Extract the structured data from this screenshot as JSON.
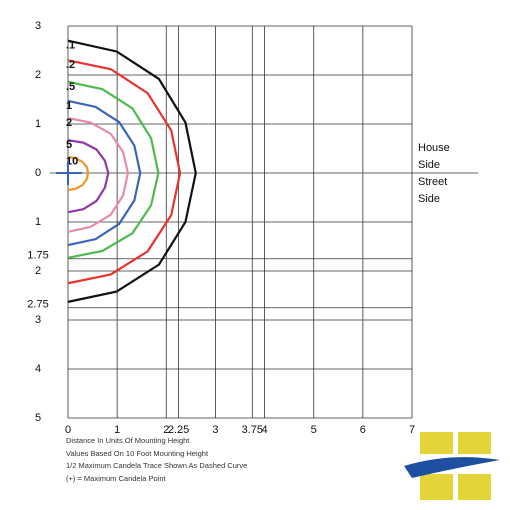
{
  "chart_data": {
    "type": "line",
    "xlim": [
      0,
      7
    ],
    "ylim": [
      -5,
      3
    ],
    "xticks": [
      0,
      1,
      2,
      2.25,
      3,
      3.75,
      4,
      5,
      6,
      7
    ],
    "yticks": [
      3,
      2,
      1,
      0,
      {
        "value": -1,
        "label": "1"
      },
      {
        "value": -1.75,
        "label": "1.75"
      },
      {
        "value": -2,
        "label": "2"
      },
      {
        "value": -2.75,
        "label": "2.75"
      },
      {
        "value": -3,
        "label": "3"
      },
      {
        "value": -4,
        "label": "4"
      },
      {
        "value": -5,
        "label": "5"
      }
    ],
    "grid": true,
    "side_labels": [
      "House Side",
      "Street Side"
    ],
    "notes": [
      "Distance In Units Of Mounting Height",
      "Values Based On 10 Foot Mounting Height",
      "1/2 Maximum Candela Trace Shown As Dashed Curve",
      "(+) = Maximum Candela Point"
    ],
    "series": [
      {
        "name": ".1",
        "color": "#111111",
        "x": [
          0,
          0.99,
          1.85,
          2.39,
          2.6,
          2.39,
          1.85,
          0.99,
          0
        ],
        "y": [
          2.7,
          2.48,
          1.92,
          1.03,
          0,
          -1.0,
          -1.87,
          -2.42,
          -2.63
        ]
      },
      {
        "name": ".2",
        "color": "#e8332f",
        "x": [
          0,
          0.87,
          1.62,
          2.1,
          2.28,
          2.1,
          1.62,
          0.87,
          0
        ],
        "y": [
          2.3,
          2.12,
          1.63,
          0.87,
          0,
          -0.86,
          -1.6,
          -2.07,
          -2.25
        ]
      },
      {
        "name": ".5",
        "color": "#4cbb4c",
        "x": [
          0,
          0.7,
          1.31,
          1.69,
          1.84,
          1.69,
          1.31,
          0.7,
          0
        ],
        "y": [
          1.86,
          1.71,
          1.32,
          0.71,
          0,
          -0.66,
          -1.23,
          -1.59,
          -1.73
        ]
      },
      {
        "name": "1",
        "color": "#3a64b8",
        "x": [
          0,
          0.56,
          1.04,
          1.35,
          1.47,
          1.35,
          1.04,
          0.56,
          0
        ],
        "y": [
          1.47,
          1.35,
          1.04,
          0.56,
          0,
          -0.56,
          -1.04,
          -1.35,
          -1.47
        ]
      },
      {
        "name": "2",
        "color": "#e889b0",
        "x": [
          0,
          0.46,
          0.87,
          1.12,
          1.22,
          1.12,
          0.87,
          0.46,
          0
        ],
        "y": [
          1.12,
          1.03,
          0.8,
          0.43,
          0,
          -0.46,
          -0.85,
          -1.1,
          -1.2
        ]
      },
      {
        "name": "5",
        "color": "#8e3aa6",
        "x": [
          0,
          0.31,
          0.58,
          0.75,
          0.82,
          0.75,
          0.58,
          0.31,
          0
        ],
        "y": [
          0.67,
          0.62,
          0.48,
          0.25,
          0,
          -0.3,
          -0.57,
          -0.74,
          -0.8
        ]
      },
      {
        "name": "10",
        "color": "#f0962a",
        "x": [
          0,
          0.16,
          0.29,
          0.38,
          0.41,
          0.38,
          0.29,
          0.16,
          0
        ],
        "y": [
          0.33,
          0.3,
          0.23,
          0.13,
          0,
          -0.13,
          -0.25,
          -0.32,
          -0.35
        ]
      }
    ]
  }
}
